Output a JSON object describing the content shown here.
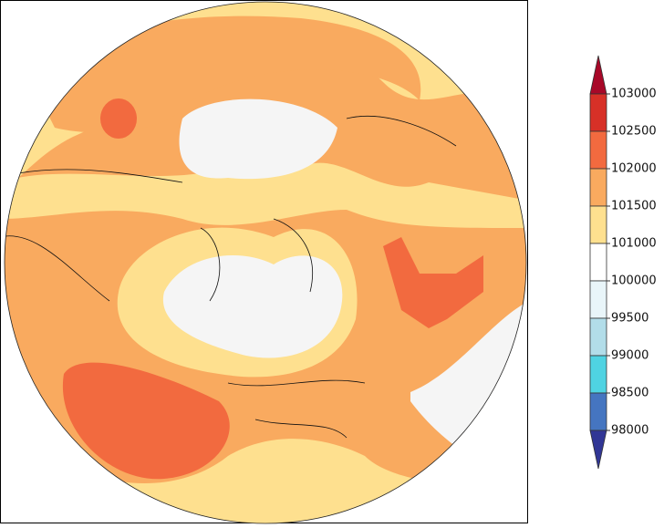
{
  "colorbar": {
    "levels": [
      103000,
      102500,
      102000,
      101500,
      101000,
      100000,
      99500,
      99000,
      98500,
      98000
    ],
    "colors": [
      "#a80828",
      "#d73027",
      "#f26a3f",
      "#f9aa5f",
      "#fee08f",
      "#ffffff",
      "#e9f5f9",
      "#b2dde9",
      "#4fd3e2",
      "#4575c0",
      "#313695"
    ]
  }
}
